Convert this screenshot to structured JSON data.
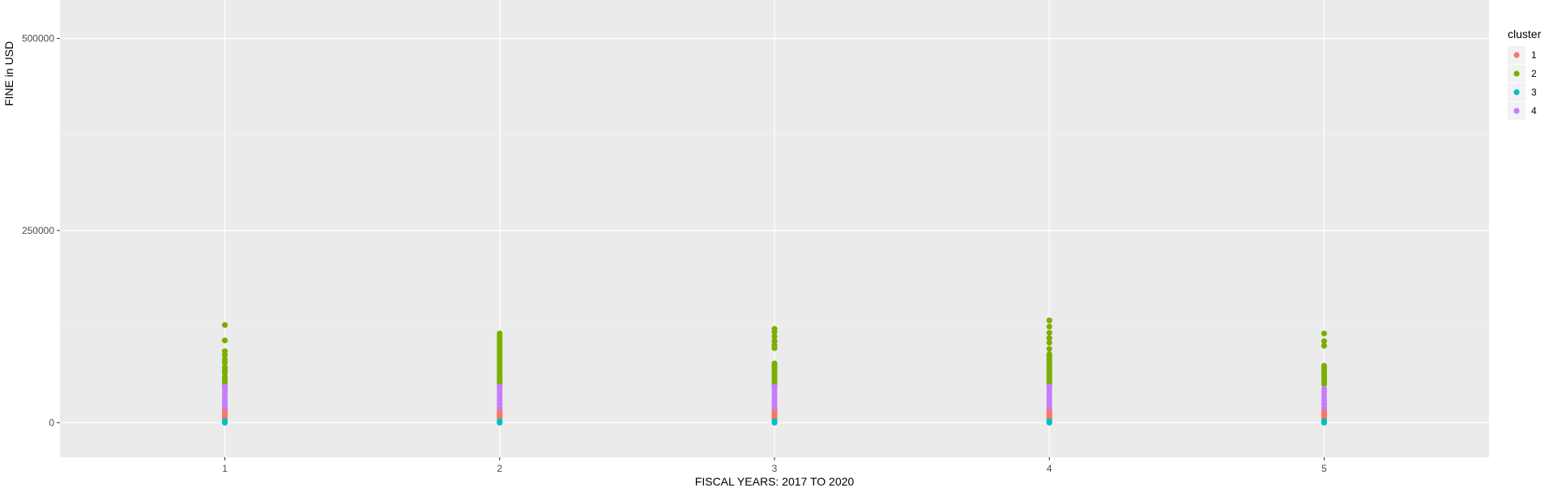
{
  "chart_data": {
    "type": "scatter",
    "title": "",
    "xlabel": "FISCAL YEARS: 2017 TO 2020",
    "ylabel": "FINE in USD",
    "xlim": [
      0.4,
      5.6
    ],
    "ylim": [
      -45000,
      550000
    ],
    "x_ticks": [
      1,
      2,
      3,
      4,
      5
    ],
    "x_tick_labels": [
      "1",
      "2",
      "3",
      "4",
      "5"
    ],
    "y_ticks": [
      0,
      250000,
      500000
    ],
    "y_tick_labels": [
      "0",
      "250000",
      "500000"
    ],
    "y_minor_ticks": [
      125000,
      375000
    ],
    "grid": true,
    "legend": {
      "title": "cluster",
      "position": "right"
    },
    "series": [
      {
        "name": "1",
        "color": "#F8766D",
        "points": [
          [
            1,
            5000
          ],
          [
            1,
            7500
          ],
          [
            1,
            10000
          ],
          [
            1,
            12500
          ],
          [
            1,
            15000
          ],
          [
            1,
            17500
          ],
          [
            2,
            5000
          ],
          [
            2,
            7500
          ],
          [
            2,
            10000
          ],
          [
            2,
            12500
          ],
          [
            2,
            15000
          ],
          [
            2,
            17500
          ],
          [
            3,
            5000
          ],
          [
            3,
            7500
          ],
          [
            3,
            10000
          ],
          [
            3,
            12500
          ],
          [
            3,
            15000
          ],
          [
            3,
            17500
          ],
          [
            4,
            5000
          ],
          [
            4,
            7500
          ],
          [
            4,
            10000
          ],
          [
            4,
            12500
          ],
          [
            4,
            15000
          ],
          [
            4,
            17500
          ],
          [
            5,
            5000
          ],
          [
            5,
            7500
          ],
          [
            5,
            10000
          ],
          [
            5,
            12500
          ],
          [
            5,
            15000
          ],
          [
            5,
            17500
          ]
        ]
      },
      {
        "name": "2",
        "color": "#7CAE00",
        "points": [
          [
            1,
            50000
          ],
          [
            1,
            53000
          ],
          [
            1,
            56000
          ],
          [
            1,
            60000
          ],
          [
            1,
            65000
          ],
          [
            1,
            68000
          ],
          [
            1,
            72000
          ],
          [
            1,
            78000
          ],
          [
            1,
            82000
          ],
          [
            1,
            88000
          ],
          [
            1,
            93000
          ],
          [
            1,
            107000
          ],
          [
            1,
            127000
          ],
          [
            2,
            50000
          ],
          [
            2,
            53000
          ],
          [
            2,
            56000
          ],
          [
            2,
            59000
          ],
          [
            2,
            62000
          ],
          [
            2,
            65000
          ],
          [
            2,
            68000
          ],
          [
            2,
            71000
          ],
          [
            2,
            74000
          ],
          [
            2,
            77000
          ],
          [
            2,
            80000
          ],
          [
            2,
            83000
          ],
          [
            2,
            86000
          ],
          [
            2,
            89000
          ],
          [
            2,
            92000
          ],
          [
            2,
            95000
          ],
          [
            2,
            98000
          ],
          [
            2,
            101000
          ],
          [
            2,
            104000
          ],
          [
            2,
            108000
          ],
          [
            2,
            112000
          ],
          [
            2,
            116000
          ],
          [
            3,
            50000
          ],
          [
            3,
            53000
          ],
          [
            3,
            56000
          ],
          [
            3,
            59000
          ],
          [
            3,
            62000
          ],
          [
            3,
            65000
          ],
          [
            3,
            68000
          ],
          [
            3,
            71000
          ],
          [
            3,
            74000
          ],
          [
            3,
            77000
          ],
          [
            3,
            97000
          ],
          [
            3,
            101000
          ],
          [
            3,
            106000
          ],
          [
            3,
            112000
          ],
          [
            3,
            118000
          ],
          [
            3,
            122000
          ],
          [
            4,
            50000
          ],
          [
            4,
            53000
          ],
          [
            4,
            56000
          ],
          [
            4,
            59000
          ],
          [
            4,
            62000
          ],
          [
            4,
            65000
          ],
          [
            4,
            68000
          ],
          [
            4,
            71000
          ],
          [
            4,
            74000
          ],
          [
            4,
            77000
          ],
          [
            4,
            80000
          ],
          [
            4,
            83000
          ],
          [
            4,
            86000
          ],
          [
            4,
            89000
          ],
          [
            4,
            96000
          ],
          [
            4,
            104000
          ],
          [
            4,
            110000
          ],
          [
            4,
            117000
          ],
          [
            4,
            125000
          ],
          [
            4,
            133000
          ],
          [
            5,
            50000
          ],
          [
            5,
            53000
          ],
          [
            5,
            56000
          ],
          [
            5,
            59000
          ],
          [
            5,
            62000
          ],
          [
            5,
            65000
          ],
          [
            5,
            68000
          ],
          [
            5,
            71000
          ],
          [
            5,
            74000
          ],
          [
            5,
            100000
          ],
          [
            5,
            106000
          ],
          [
            5,
            116000
          ]
        ]
      },
      {
        "name": "3",
        "color": "#00BFC4",
        "points": [
          [
            1,
            0
          ],
          [
            1,
            2000
          ],
          [
            2,
            0
          ],
          [
            2,
            2000
          ],
          [
            3,
            0
          ],
          [
            3,
            2000
          ],
          [
            4,
            0
          ],
          [
            4,
            2000
          ],
          [
            5,
            0
          ],
          [
            5,
            2000
          ]
        ]
      },
      {
        "name": "4",
        "color": "#C77CFF",
        "points": [
          [
            1,
            20000
          ],
          [
            1,
            24000
          ],
          [
            1,
            28000
          ],
          [
            1,
            32000
          ],
          [
            1,
            36000
          ],
          [
            1,
            40000
          ],
          [
            1,
            44000
          ],
          [
            1,
            47000
          ],
          [
            2,
            20000
          ],
          [
            2,
            24000
          ],
          [
            2,
            28000
          ],
          [
            2,
            32000
          ],
          [
            2,
            36000
          ],
          [
            2,
            40000
          ],
          [
            2,
            44000
          ],
          [
            2,
            47000
          ],
          [
            3,
            20000
          ],
          [
            3,
            24000
          ],
          [
            3,
            28000
          ],
          [
            3,
            32000
          ],
          [
            3,
            36000
          ],
          [
            3,
            40000
          ],
          [
            3,
            44000
          ],
          [
            3,
            47000
          ],
          [
            4,
            20000
          ],
          [
            4,
            24000
          ],
          [
            4,
            28000
          ],
          [
            4,
            32000
          ],
          [
            4,
            36000
          ],
          [
            4,
            40000
          ],
          [
            4,
            44000
          ],
          [
            4,
            47000
          ],
          [
            5,
            20000
          ],
          [
            5,
            24000
          ],
          [
            5,
            28000
          ],
          [
            5,
            32000
          ],
          [
            5,
            36000
          ],
          [
            5,
            40000
          ],
          [
            5,
            44000
          ]
        ]
      }
    ]
  }
}
